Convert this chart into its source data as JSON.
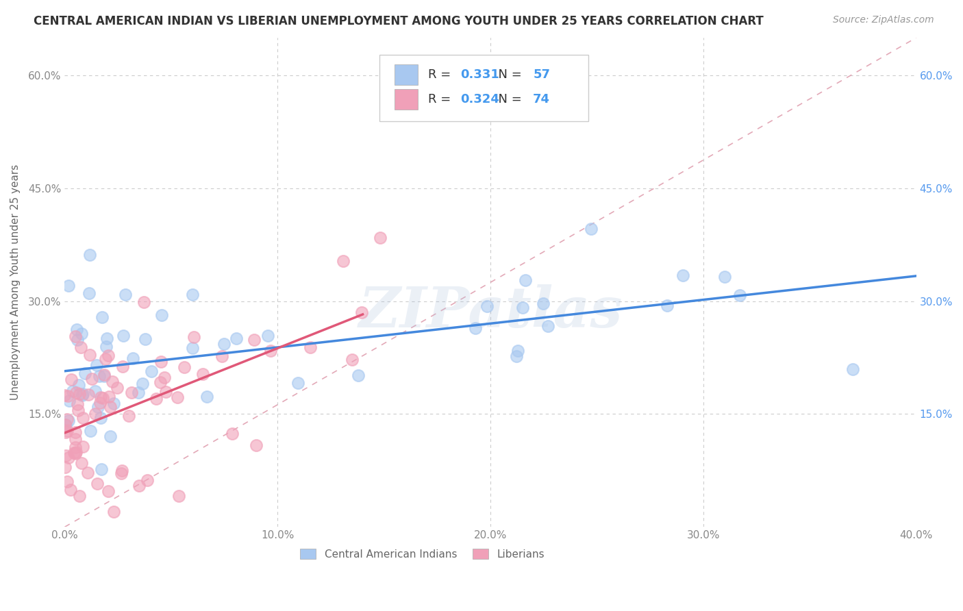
{
  "title": "CENTRAL AMERICAN INDIAN VS LIBERIAN UNEMPLOYMENT AMONG YOUTH UNDER 25 YEARS CORRELATION CHART",
  "source": "Source: ZipAtlas.com",
  "ylabel": "Unemployment Among Youth under 25 years",
  "xlim": [
    0.0,
    0.4
  ],
  "ylim": [
    0.0,
    0.65
  ],
  "xticks": [
    0.0,
    0.1,
    0.2,
    0.3,
    0.4
  ],
  "yticks": [
    0.0,
    0.15,
    0.3,
    0.45,
    0.6
  ],
  "legend_bottom_labels": [
    "Central American Indians",
    "Liberians"
  ],
  "blue_color": "#A8C8F0",
  "pink_color": "#F0A0B8",
  "blue_line_color": "#4488DD",
  "pink_line_color": "#E05878",
  "ref_line_color": "#E0A0B0",
  "R_blue": 0.331,
  "N_blue": 57,
  "R_pink": 0.324,
  "N_pink": 74,
  "background_color": "#FFFFFF",
  "grid_color": "#CCCCCC",
  "text_color_N": "#4499EE",
  "watermark": "ZIPatlas",
  "right_tick_color": "#5599EE",
  "tick_color": "#888888"
}
